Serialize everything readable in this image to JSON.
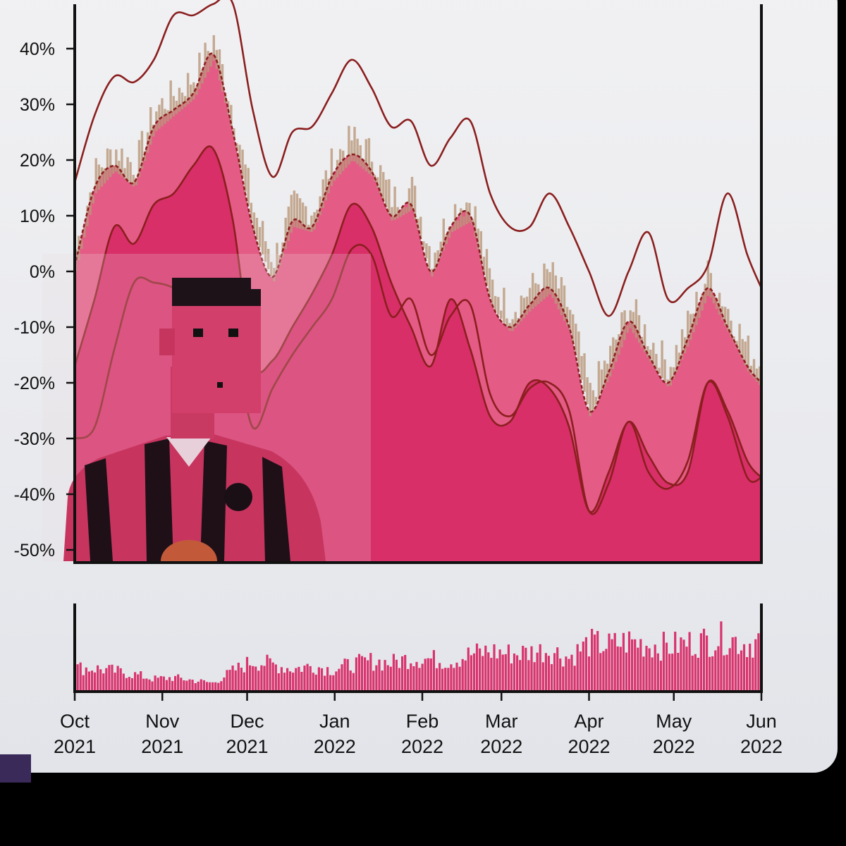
{
  "colors": {
    "background": "#ededf0",
    "band_outer": "#e45b86",
    "band_inner": "#d82f68",
    "noise": "#b9977a",
    "line": "#8b1f1f",
    "volume": "#d8346d"
  },
  "chart_data": {
    "type": "area",
    "title": "",
    "xlabel": "",
    "ylabel": "",
    "ylim": [
      -50,
      50
    ],
    "y_ticks": [
      "40%",
      "30%",
      "20%",
      "10%",
      "0%",
      "-10%",
      "-20%",
      "-30%",
      "-40%",
      "-50%"
    ],
    "y_tick_values": [
      40,
      30,
      20,
      10,
      0,
      -10,
      -20,
      -30,
      -40,
      -50
    ],
    "x_tick_labels": [
      {
        "month": "Oct",
        "year": "2021"
      },
      {
        "month": "Nov",
        "year": "2021"
      },
      {
        "month": "Dec",
        "year": "2021"
      },
      {
        "month": "Jan",
        "year": "2022"
      },
      {
        "month": "Feb",
        "year": "2022"
      },
      {
        "month": "Mar",
        "year": "2022"
      },
      {
        "month": "Apr",
        "year": "2022"
      },
      {
        "month": "May",
        "year": "2022"
      },
      {
        "month": "Jun",
        "year": "2022"
      }
    ],
    "x_tick_dates": [
      "2021-10-01",
      "2021-11-01",
      "2021-12-01",
      "2022-01-01",
      "2022-02-01",
      "2022-03-01",
      "2022-04-01",
      "2022-05-01",
      "2022-06-01"
    ],
    "x": [
      "2021-10-01",
      "2021-10-08",
      "2021-10-15",
      "2021-10-22",
      "2021-10-29",
      "2021-11-05",
      "2021-11-12",
      "2021-11-19",
      "2021-11-26",
      "2021-12-03",
      "2021-12-10",
      "2021-12-17",
      "2021-12-24",
      "2021-12-31",
      "2022-01-07",
      "2022-01-14",
      "2022-01-21",
      "2022-01-28",
      "2022-02-04",
      "2022-02-11",
      "2022-02-18",
      "2022-02-25",
      "2022-03-04",
      "2022-03-11",
      "2022-03-18",
      "2022-03-25",
      "2022-04-01",
      "2022-04-08",
      "2022-04-15",
      "2022-04-22",
      "2022-04-29",
      "2022-05-06",
      "2022-05-13",
      "2022-05-20",
      "2022-05-27",
      "2022-06-01"
    ],
    "series": [
      {
        "values": [
          16,
          28,
          35,
          34,
          38,
          46,
          46,
          48,
          48,
          29,
          17,
          25,
          26,
          32,
          38,
          33,
          26,
          27,
          19,
          24,
          27,
          14,
          8,
          8,
          14,
          8,
          0,
          -8,
          0,
          7,
          -5,
          -3,
          1,
          14,
          3,
          -3
        ]
      },
      {
        "values": [
          1,
          15,
          19,
          16,
          26,
          29,
          32,
          39,
          25,
          8,
          -1,
          9,
          8,
          17,
          21,
          18,
          10,
          12,
          0,
          8,
          10,
          -5,
          -10,
          -6,
          -3,
          -10,
          -25,
          -18,
          -9,
          -15,
          -20,
          -12,
          -3,
          -10,
          -17,
          -20
        ]
      },
      {
        "values": [
          -17,
          -5,
          8,
          5,
          12,
          14,
          19,
          22,
          9,
          -16,
          -16,
          -10,
          -4,
          3,
          12,
          8,
          -2,
          -10,
          -17,
          -5,
          -14,
          -26,
          -27,
          -20,
          -21,
          -28,
          -43,
          -36,
          -27,
          -33,
          -38,
          -36,
          -20,
          -25,
          -34,
          -37
        ]
      },
      {
        "values": [
          -30,
          -28,
          -14,
          -2,
          -2,
          -3,
          -6,
          -8,
          -12,
          -28,
          -21,
          -15,
          -10,
          -5,
          4,
          3,
          -8,
          -5,
          -15,
          -8,
          -6,
          -22,
          -26,
          -21,
          -20,
          -25,
          -43,
          -38,
          -27,
          -36,
          -39,
          -34,
          -20,
          -26,
          -37,
          -37
        ]
      }
    ],
    "volume": [
      0.35,
      0.34,
      0.3,
      0.25,
      0.18,
      0.2,
      0.16,
      0.12,
      0.3,
      0.45,
      0.4,
      0.33,
      0.38,
      0.32,
      0.4,
      0.45,
      0.42,
      0.5,
      0.48,
      0.45,
      0.55,
      0.6,
      0.56,
      0.58,
      0.62,
      0.5,
      0.72,
      0.68,
      0.75,
      0.7,
      0.67,
      0.72,
      0.76,
      0.8,
      0.7,
      0.78
    ]
  }
}
